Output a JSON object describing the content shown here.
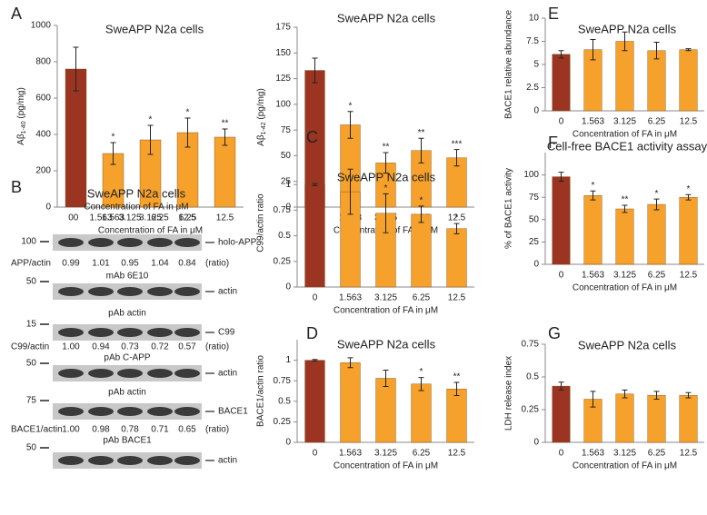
{
  "chart_data": [
    {
      "type": "bar",
      "panel": "A",
      "title": "SweAPP N2a cells",
      "ylabel": [
        "Aβ",
        "1-40",
        " (pg/mg)"
      ],
      "xlabel": "Concentration of FA in μM",
      "categories": [
        "0",
        "1.563",
        "3.125",
        "6.25",
        "12.5"
      ],
      "values": [
        760,
        295,
        370,
        410,
        385
      ],
      "errors": [
        120,
        60,
        80,
        80,
        45
      ],
      "annotations": [
        null,
        "*",
        "*",
        "*",
        "**"
      ],
      "colors": [
        "#9b3522",
        "#f5a12c",
        "#f5a12c",
        "#f5a12c",
        "#f5a12c"
      ],
      "ylim": [
        0,
        1000
      ],
      "yticks": [
        0,
        200,
        400,
        600,
        800,
        1000
      ]
    },
    {
      "type": "bar",
      "title": "SweAPP N2a cells",
      "ylabel": [
        "Aβ",
        "1-42",
        " (pg/mg)"
      ],
      "xlabel": "Concentration of FA in μM",
      "categories": [
        "0",
        "1.563",
        "3.125",
        "6.25",
        "12.5"
      ],
      "values": [
        133,
        80,
        43,
        55,
        48
      ],
      "errors": [
        12,
        13,
        10,
        12,
        8
      ],
      "annotations": [
        null,
        "*",
        "**",
        "**",
        "***"
      ],
      "colors": [
        "#9b3522",
        "#f5a12c",
        "#f5a12c",
        "#f5a12c",
        "#f5a12c"
      ],
      "ylim": [
        0,
        175
      ],
      "yticks": [
        0,
        25,
        50,
        75,
        100,
        125,
        150,
        175
      ]
    },
    {
      "type": "bar",
      "panel": "E",
      "title": "SweAPP N2a cells",
      "ylabel": "BACE1 relative abundance",
      "xlabel": "Concentration of FA in μM",
      "categories": [
        "0",
        "1.563",
        "3.125",
        "6.25",
        "12.5"
      ],
      "values": [
        6.1,
        6.6,
        7.5,
        6.5,
        6.6
      ],
      "errors": [
        0.4,
        1.1,
        1.0,
        0.9,
        0.1
      ],
      "colors": [
        "#9b3522",
        "#f5a12c",
        "#f5a12c",
        "#f5a12c",
        "#f5a12c"
      ],
      "ylim": [
        0,
        10
      ],
      "yticks": [
        0,
        2.5,
        5,
        7.5,
        10
      ]
    },
    {
      "type": "bar",
      "panel": "C",
      "title": "SweAPP N2a cells",
      "ylabel": "C99/actin ratio",
      "xlabel": "Concentration of FA in μM",
      "categories": [
        "0",
        "1.563",
        "3.125",
        "6.25",
        "12.5"
      ],
      "values": [
        1.0,
        0.93,
        0.72,
        0.71,
        0.57
      ],
      "errors": [
        0.01,
        0.22,
        0.19,
        0.08,
        0.05
      ],
      "annotations": [
        null,
        null,
        "*",
        "*",
        "*"
      ],
      "colors": [
        "#9b3522",
        "#f5a12c",
        "#f5a12c",
        "#f5a12c",
        "#f5a12c"
      ],
      "ylim": [
        0,
        1.25
      ],
      "yticks": [
        0,
        0.25,
        0.5,
        0.75,
        1
      ]
    },
    {
      "type": "bar",
      "panel": "F",
      "title": "Cell-free BACE1 activity assay",
      "ylabel": "% of BACE1 activity",
      "xlabel": "Concentration of FA in μM",
      "categories": [
        "0",
        "1.563",
        "3.125",
        "6.25",
        "12.5"
      ],
      "values": [
        98,
        77,
        62,
        67,
        75
      ],
      "errors": [
        5,
        5,
        4,
        6,
        3
      ],
      "annotations": [
        null,
        "*",
        "**",
        "*",
        "*"
      ],
      "colors": [
        "#9b3522",
        "#f5a12c",
        "#f5a12c",
        "#f5a12c",
        "#f5a12c"
      ],
      "ylim": [
        0,
        125
      ],
      "yticks": [
        0,
        25,
        50,
        75,
        100
      ]
    },
    {
      "type": "bar",
      "panel": "D",
      "title": "SweAPP N2a cells",
      "ylabel": "BACE1/actin ratio",
      "xlabel": "Concentration of FA in μM",
      "categories": [
        "0",
        "1.563",
        "3.125",
        "6.25",
        "12.5"
      ],
      "values": [
        1.0,
        0.97,
        0.78,
        0.71,
        0.65
      ],
      "errors": [
        0.01,
        0.06,
        0.1,
        0.08,
        0.08
      ],
      "annotations": [
        null,
        null,
        null,
        "*",
        "**"
      ],
      "colors": [
        "#9b3522",
        "#f5a12c",
        "#f5a12c",
        "#f5a12c",
        "#f5a12c"
      ],
      "ylim": [
        0,
        1.25
      ],
      "yticks": [
        0,
        0.25,
        0.5,
        0.75,
        1
      ]
    },
    {
      "type": "bar",
      "panel": "G",
      "title": "SweAPP N2a cells",
      "ylabel": "LDH release index",
      "xlabel": "Concentration of FA in μM",
      "categories": [
        "0",
        "1.563",
        "3.125",
        "6.25",
        "12.5"
      ],
      "values": [
        0.43,
        0.33,
        0.37,
        0.36,
        0.36
      ],
      "errors": [
        0.03,
        0.06,
        0.03,
        0.03,
        0.02
      ],
      "colors": [
        "#9b3522",
        "#f5a12c",
        "#f5a12c",
        "#f5a12c",
        "#f5a12c"
      ],
      "ylim": [
        0,
        0.75
      ],
      "yticks": [
        0,
        0.25,
        0.5,
        0.75
      ]
    }
  ],
  "blot": {
    "panel": "B",
    "title": "SweAPP N2a cells",
    "subtitle": "Concentration of FA in μM",
    "lanes": [
      "0",
      "1.563",
      "3.125",
      "6.25",
      "12.5"
    ],
    "rows": [
      {
        "marker": "100",
        "band": "holo-APP",
        "ratio_name": "APP/actin",
        "ratios": [
          "0.99",
          "1.01",
          "0.95",
          "1.04",
          "0.84"
        ],
        "ratio_unit": "(ratio)",
        "antibody": "mAb 6E10"
      },
      {
        "marker": "50",
        "band": "actin",
        "antibody": "pAb actin"
      },
      {
        "marker": "15",
        "band": "C99",
        "ratio_name": "C99/actin",
        "ratios": [
          "1.00",
          "0.94",
          "0.73",
          "0.72",
          "0.57"
        ],
        "ratio_unit": "(ratio)",
        "antibody": "pAb C-APP"
      },
      {
        "marker": "50",
        "band": "actin",
        "antibody": "pAb actin"
      },
      {
        "marker": "75",
        "band": "BACE1",
        "ratio_name": "BACE1/actin",
        "ratios": [
          "1.00",
          "0.98",
          "0.78",
          "0.71",
          "0.65"
        ],
        "ratio_unit": "(ratio)",
        "antibody": "pAb BACE1"
      },
      {
        "marker": "50",
        "band": "actin"
      }
    ]
  }
}
